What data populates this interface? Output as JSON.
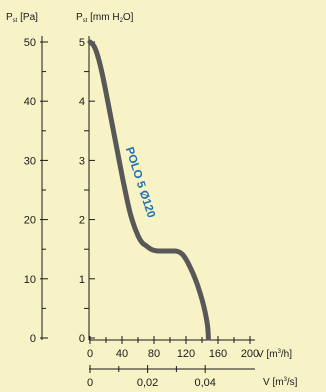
{
  "chart_data": {
    "type": "line",
    "axes": {
      "left_pa": {
        "label_main": "P",
        "label_sub": "st",
        "label_unit": " [Pa]",
        "ticks": [
          0,
          10,
          20,
          30,
          40,
          50
        ],
        "range": [
          0,
          50
        ]
      },
      "left_mm": {
        "label_main": "P",
        "label_sub": "st",
        "label_pre": " [mm H",
        "label_sub2": "2",
        "label_post": "O]",
        "ticks": [
          0,
          1,
          2,
          3,
          4,
          5
        ],
        "range": [
          0,
          5
        ]
      },
      "x_flow_h": {
        "label_pre": "V [m",
        "label_sup": "3",
        "label_post": "/h]",
        "ticks": [
          0,
          40,
          80,
          120,
          160,
          200
        ],
        "range": [
          0,
          200
        ]
      },
      "x_flow_s": {
        "label_pre": "V [m",
        "label_sup": "3",
        "label_post": "/s]",
        "ticks": [
          "0",
          "0,02",
          "0,04"
        ],
        "tick_values": [
          0,
          0.02,
          0.04
        ]
      }
    },
    "series": [
      {
        "name": "POLO 5 Ø120",
        "color": "#585858",
        "x_m3h": [
          0,
          5,
          10,
          15,
          20,
          25,
          30,
          35,
          40,
          45,
          50,
          55,
          60,
          63,
          66,
          70,
          75,
          80,
          85,
          90,
          95,
          100,
          105,
          110,
          115,
          120,
          125,
          130,
          135,
          140,
          144,
          147,
          148
        ],
        "y_pa": [
          50,
          49.3,
          47.5,
          44.8,
          41.5,
          38.0,
          34.5,
          31.0,
          27.5,
          24.2,
          21.2,
          19.0,
          17.3,
          16.5,
          16.0,
          15.6,
          15.1,
          14.8,
          14.7,
          14.7,
          14.7,
          14.7,
          14.7,
          14.6,
          14.2,
          13.3,
          12.0,
          10.5,
          8.7,
          6.5,
          4.3,
          2.0,
          0
        ]
      }
    ]
  }
}
